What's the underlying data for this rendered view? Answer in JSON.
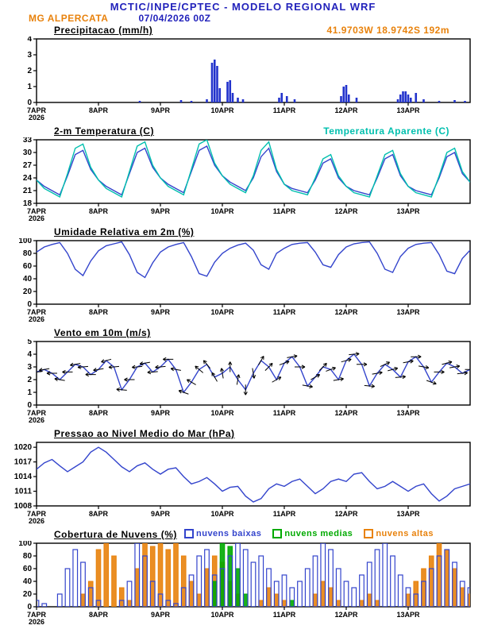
{
  "header": {
    "title": "MCTIC/INPE/CPTEC - MODELO REGIONAL WRF",
    "station": "MG ALPERCATA",
    "run": "07/04/2026 00Z",
    "location": "41.9703W 18.9742S 192m"
  },
  "colors": {
    "title_blue": "#2222bb",
    "orange": "#e8820c",
    "cyan": "#00bfae",
    "line_blue": "#3344cc",
    "bar_blue": "#2233cc",
    "green": "#00aa00",
    "black": "#000000"
  },
  "x_axis": {
    "hours": 168,
    "tick_interval": 24,
    "tick_labels": [
      "7APR",
      "8APR",
      "9APR",
      "10APR",
      "11APR",
      "12APR",
      "13APR"
    ],
    "year_label": "2026"
  },
  "chart_data": [
    {
      "type": "bar",
      "title": "Precipitacao (mm/h)",
      "ylim": [
        0,
        4
      ],
      "yticks": [
        0,
        1,
        2,
        3,
        4
      ],
      "bar_color": "bar_blue",
      "bars": [
        {
          "h": 40,
          "v": 0.1
        },
        {
          "h": 56,
          "v": 0.15
        },
        {
          "h": 60,
          "v": 0.1
        },
        {
          "h": 66,
          "v": 0.2
        },
        {
          "h": 68,
          "v": 2.5
        },
        {
          "h": 69,
          "v": 2.7
        },
        {
          "h": 70,
          "v": 2.3
        },
        {
          "h": 71,
          "v": 0.9
        },
        {
          "h": 74,
          "v": 1.3
        },
        {
          "h": 75,
          "v": 1.4
        },
        {
          "h": 76,
          "v": 0.6
        },
        {
          "h": 78,
          "v": 0.3
        },
        {
          "h": 80,
          "v": 0.2
        },
        {
          "h": 94,
          "v": 0.3
        },
        {
          "h": 95,
          "v": 0.6
        },
        {
          "h": 97,
          "v": 0.4
        },
        {
          "h": 100,
          "v": 0.2
        },
        {
          "h": 118,
          "v": 0.4
        },
        {
          "h": 119,
          "v": 1.0
        },
        {
          "h": 120,
          "v": 1.1
        },
        {
          "h": 121,
          "v": 0.5
        },
        {
          "h": 124,
          "v": 0.3
        },
        {
          "h": 140,
          "v": 0.2
        },
        {
          "h": 141,
          "v": 0.5
        },
        {
          "h": 142,
          "v": 0.7
        },
        {
          "h": 143,
          "v": 0.7
        },
        {
          "h": 144,
          "v": 0.5
        },
        {
          "h": 145,
          "v": 0.3
        },
        {
          "h": 147,
          "v": 0.6
        },
        {
          "h": 150,
          "v": 0.2
        },
        {
          "h": 156,
          "v": 0.1
        },
        {
          "h": 162,
          "v": 0.15
        },
        {
          "h": 166,
          "v": 0.1
        }
      ]
    },
    {
      "type": "line",
      "title": "2-m Temperatura (C)",
      "title_right": "Temperatura Aparente (C)",
      "ylim": [
        18,
        33
      ],
      "yticks": [
        18,
        21,
        24,
        27,
        30,
        33
      ],
      "step_hours": 3,
      "series": [
        {
          "name": "2-m Temperatura (C)",
          "color": "line_blue",
          "values": [
            23.5,
            22,
            21,
            20,
            24.5,
            29.5,
            30.5,
            26,
            23.5,
            22,
            21,
            20,
            25,
            30,
            31,
            26.5,
            24,
            22.5,
            21.5,
            20.5,
            25.5,
            30.5,
            31.5,
            27,
            24.5,
            23,
            22,
            21,
            24,
            29,
            31,
            25.5,
            22.5,
            21.5,
            21,
            20.5,
            23.5,
            27.5,
            28.5,
            24,
            22,
            21,
            20.5,
            20,
            24,
            28.5,
            29.5,
            24.5,
            22,
            21,
            20.5,
            20,
            24,
            29,
            30,
            25,
            23
          ]
        },
        {
          "name": "Temperatura Aparente (C)",
          "color": "cyan",
          "values": [
            23.5,
            21.5,
            20.5,
            19.5,
            25,
            31,
            32,
            26.5,
            23.5,
            21.5,
            20.5,
            19.5,
            25.5,
            31.5,
            32.5,
            27,
            24,
            22,
            21,
            20,
            26,
            32,
            33,
            27.5,
            24.5,
            22.5,
            21.5,
            20.5,
            24.5,
            30.5,
            32.5,
            26,
            22.5,
            21,
            20.5,
            20,
            24,
            28.5,
            29.5,
            24.5,
            22,
            20.5,
            20,
            19.5,
            24.5,
            29.5,
            30.5,
            25,
            22,
            20.5,
            20,
            19.5,
            24.5,
            30,
            31,
            25.5,
            23
          ]
        }
      ]
    },
    {
      "type": "line",
      "title": "Umidade Relativa em 2m (%)",
      "ylim": [
        0,
        100
      ],
      "yticks": [
        0,
        20,
        40,
        60,
        80,
        100
      ],
      "step_hours": 3,
      "series": [
        {
          "name": "Umidade Relativa em 2m (%)",
          "color": "line_blue",
          "values": [
            82,
            90,
            94,
            97,
            80,
            55,
            45,
            68,
            84,
            92,
            95,
            98,
            78,
            50,
            42,
            65,
            82,
            90,
            94,
            97,
            75,
            48,
            44,
            66,
            80,
            88,
            93,
            96,
            85,
            62,
            55,
            80,
            88,
            94,
            96,
            97,
            82,
            62,
            58,
            78,
            90,
            95,
            97,
            98,
            80,
            55,
            50,
            75,
            88,
            94,
            96,
            97,
            78,
            52,
            48,
            72,
            85
          ]
        }
      ]
    },
    {
      "type": "line",
      "title": "Vento em 10m (m/s)",
      "ylim": [
        0,
        5
      ],
      "yticks": [
        0,
        1,
        2,
        3,
        4,
        5
      ],
      "step_hours": 3,
      "series": [
        {
          "name": "Vento em 10m (m/s)",
          "color": "line_blue",
          "values": [
            2.6,
            2.8,
            2.5,
            2.0,
            2.6,
            3.2,
            3.0,
            2.4,
            2.8,
            3.5,
            3.0,
            1.2,
            2.0,
            3.0,
            3.3,
            2.6,
            3.0,
            3.6,
            2.8,
            1.0,
            1.8,
            2.8,
            3.2,
            2.2,
            2.5,
            3.0,
            2.0,
            1.2,
            2.5,
            3.5,
            3.0,
            2.0,
            3.3,
            3.8,
            3.0,
            1.5,
            2.2,
            3.0,
            2.8,
            2.0,
            3.5,
            4.0,
            3.2,
            1.5,
            2.5,
            3.2,
            2.8,
            2.2,
            3.4,
            3.8,
            3.0,
            1.8,
            2.6,
            3.3,
            3.0,
            2.5,
            2.8
          ]
        }
      ],
      "arrows": {
        "step_hours": 3,
        "dirs_deg": [
          185,
          190,
          180,
          170,
          180,
          190,
          185,
          180,
          190,
          195,
          185,
          175,
          180,
          185,
          190,
          185,
          185,
          180,
          170,
          160,
          150,
          140,
          130,
          120,
          100,
          90,
          80,
          270,
          280,
          60,
          45,
          30,
          20,
          10,
          0,
          350,
          30,
          45,
          20,
          10,
          15,
          5,
          0,
          355,
          10,
          25,
          15,
          5,
          10,
          0,
          350,
          340,
          0,
          15,
          10,
          5,
          0
        ]
      }
    },
    {
      "type": "line",
      "title": "Pressao ao Nivel Medio do Mar (hPa)",
      "ylim": [
        1008,
        1021
      ],
      "yticks": [
        1008,
        1011,
        1014,
        1017,
        1020
      ],
      "step_hours": 3,
      "series": [
        {
          "name": "Pressao ao Nivel Medio do Mar (hPa)",
          "color": "line_blue",
          "values": [
            1015.5,
            1016.8,
            1017.5,
            1016.2,
            1015.0,
            1016.0,
            1017.0,
            1019.0,
            1020.0,
            1019.0,
            1017.5,
            1016.0,
            1015.0,
            1016.2,
            1016.8,
            1015.5,
            1014.5,
            1015.5,
            1015.8,
            1014.0,
            1012.5,
            1013.0,
            1013.8,
            1012.5,
            1011.0,
            1011.8,
            1012.0,
            1010.0,
            1008.8,
            1009.5,
            1011.5,
            1012.5,
            1012.0,
            1013.0,
            1013.5,
            1012.0,
            1010.5,
            1011.5,
            1013.0,
            1013.5,
            1013.0,
            1014.5,
            1014.8,
            1013.0,
            1011.5,
            1012.0,
            1013.0,
            1012.0,
            1011.0,
            1012.0,
            1012.5,
            1010.5,
            1009.0,
            1010.0,
            1011.5,
            1012.0,
            1012.5
          ]
        }
      ]
    },
    {
      "type": "cloud-bar",
      "title": "Cobertura de Nuvens (%)",
      "ylim": [
        0,
        100
      ],
      "yticks": [
        0,
        20,
        40,
        60,
        80,
        100
      ],
      "step_hours": 3,
      "legend": [
        {
          "label": "nuvens baixas",
          "color": "line_blue"
        },
        {
          "label": "nuvens medias",
          "color": "green"
        },
        {
          "label": "nuvens altas",
          "color": "orange"
        }
      ],
      "series": [
        {
          "name": "nuvens altas",
          "color": "orange",
          "style": "fill",
          "values": [
            0,
            0,
            0,
            0,
            0,
            0,
            20,
            40,
            90,
            100,
            80,
            30,
            10,
            60,
            100,
            95,
            100,
            90,
            100,
            80,
            40,
            20,
            60,
            80,
            70,
            40,
            20,
            0,
            0,
            10,
            30,
            20,
            10,
            0,
            0,
            0,
            20,
            40,
            30,
            10,
            0,
            0,
            10,
            20,
            10,
            0,
            0,
            0,
            20,
            40,
            60,
            80,
            100,
            90,
            60,
            30,
            20
          ]
        },
        {
          "name": "nuvens medias",
          "color": "green",
          "style": "fill",
          "values": [
            0,
            0,
            0,
            0,
            0,
            0,
            0,
            0,
            0,
            0,
            0,
            0,
            0,
            0,
            0,
            0,
            0,
            0,
            0,
            0,
            0,
            0,
            0,
            40,
            100,
            95,
            60,
            20,
            0,
            0,
            0,
            0,
            0,
            10,
            0,
            0,
            0,
            0,
            0,
            0,
            0,
            0,
            0,
            0,
            0,
            0,
            0,
            0,
            0,
            0,
            0,
            0,
            0,
            0,
            0,
            0,
            0
          ]
        },
        {
          "name": "nuvens baixas",
          "color": "line_blue",
          "style": "outline",
          "values": [
            10,
            5,
            0,
            20,
            60,
            90,
            70,
            30,
            10,
            0,
            0,
            10,
            40,
            100,
            80,
            40,
            20,
            10,
            5,
            30,
            50,
            80,
            90,
            50,
            60,
            80,
            100,
            90,
            70,
            80,
            60,
            40,
            50,
            30,
            40,
            60,
            80,
            100,
            90,
            60,
            40,
            30,
            50,
            70,
            90,
            100,
            80,
            50,
            30,
            20,
            40,
            60,
            80,
            90,
            70,
            40,
            30
          ]
        }
      ]
    }
  ]
}
